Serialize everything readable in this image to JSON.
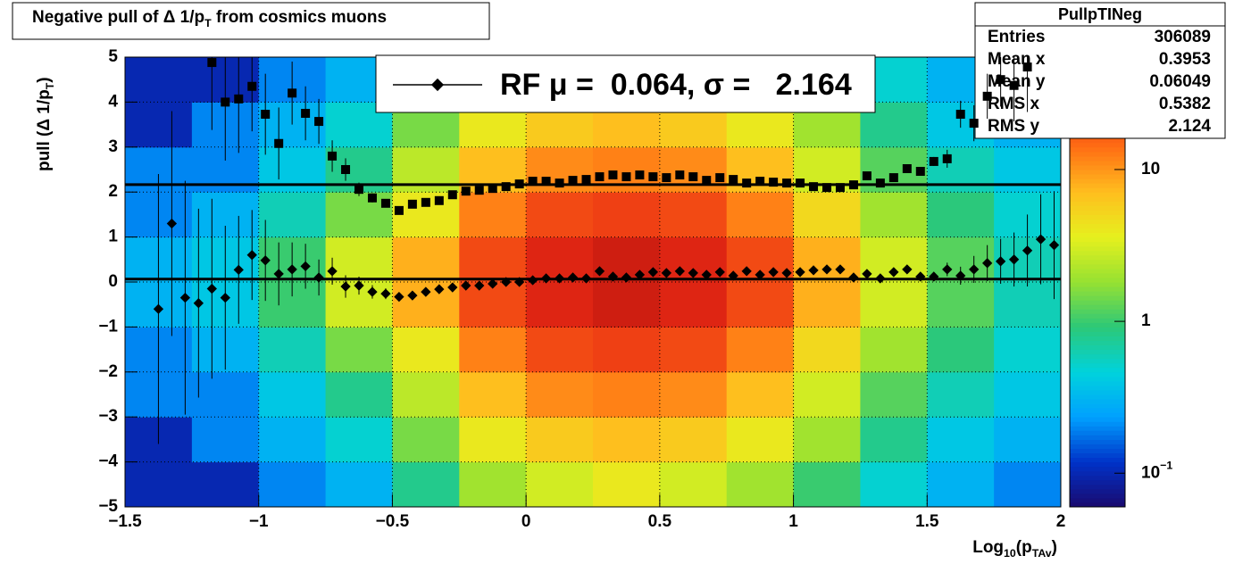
{
  "chart_data": {
    "type": "profile2d",
    "title": [
      "Negative pull of Δ 1/p",
      "T",
      " from cosmics muons"
    ],
    "xlabel": [
      "Log",
      "10",
      "(p",
      "TAv",
      ")"
    ],
    "ylabel": [
      "pull (Δ 1/p",
      "T",
      ")"
    ],
    "xlim": [
      -1.5,
      2
    ],
    "ylim": [
      -5,
      5
    ],
    "xticks": [
      {
        "value": -1.5,
        "label": "−1.5"
      },
      {
        "value": -1,
        "label": "−1"
      },
      {
        "value": -0.5,
        "label": "−0.5"
      },
      0,
      0.5,
      1,
      1.5,
      2
    ],
    "yticks": [
      {
        "value": -5,
        "label": "−5"
      },
      {
        "value": -4,
        "label": "−4"
      },
      {
        "value": -3,
        "label": "−3"
      },
      {
        "value": -2,
        "label": "−2"
      },
      {
        "value": -1,
        "label": "−1"
      },
      0,
      1,
      2,
      3,
      4,
      5
    ],
    "grid": true,
    "zlog": true,
    "zlim": [
      0.06,
      55
    ],
    "zticks": [
      {
        "value": 0.1,
        "label": [
          "10",
          "−1"
        ]
      },
      1,
      10
    ],
    "palette": [
      "#1a0a6e",
      "#0032c8",
      "#00a0ff",
      "#00d2dc",
      "#2cc878",
      "#96e132",
      "#e6f01e",
      "#ffbe1e",
      "#ff6e14",
      "#e62814",
      "#a00a0a"
    ],
    "z_xbins": [
      -1.5,
      -1.25,
      -1,
      -0.75,
      -0.5,
      -0.25,
      0,
      0.25,
      0.5,
      0.75,
      1,
      1.25,
      1.5,
      1.75,
      2
    ],
    "z_ybins": [
      -5,
      -4,
      -3,
      -2,
      -1,
      0,
      1,
      2,
      3,
      4,
      5
    ],
    "z": [
      [
        0.1,
        0.1,
        0.2,
        0.3,
        0.8,
        2,
        3,
        4,
        3,
        2,
        1,
        0.5,
        0.3,
        0.2
      ],
      [
        0.1,
        0.2,
        0.3,
        0.5,
        1.5,
        4,
        6,
        7,
        6,
        4,
        2,
        0.8,
        0.4,
        0.3
      ],
      [
        0.2,
        0.2,
        0.4,
        0.8,
        2.5,
        7,
        11,
        12,
        11,
        7,
        3,
        1.2,
        0.6,
        0.4
      ],
      [
        0.2,
        0.3,
        0.6,
        1.5,
        4,
        12,
        20,
        22,
        20,
        12,
        5,
        2,
        0.9,
        0.5
      ],
      [
        0.3,
        0.4,
        1,
        3,
        8,
        20,
        30,
        35,
        30,
        20,
        8,
        3,
        1.2,
        0.6
      ],
      [
        0.3,
        0.4,
        1,
        3,
        8,
        20,
        30,
        35,
        30,
        20,
        8,
        3,
        1.2,
        0.6
      ],
      [
        0.2,
        0.3,
        0.6,
        1.5,
        4,
        12,
        20,
        22,
        20,
        12,
        5,
        2,
        0.9,
        0.5
      ],
      [
        0.2,
        0.2,
        0.4,
        0.8,
        2.5,
        7,
        11,
        12,
        11,
        7,
        3,
        1.2,
        0.6,
        0.4
      ],
      [
        0.1,
        0.2,
        0.3,
        0.5,
        1.5,
        4,
        6,
        7,
        6,
        4,
        2,
        0.8,
        0.4,
        0.3
      ],
      [
        0.1,
        0.1,
        0.2,
        0.3,
        0.8,
        2,
        3,
        4,
        3,
        2,
        1,
        0.5,
        0.3,
        0.2
      ]
    ],
    "x": [
      -1.375,
      -1.325,
      -1.275,
      -1.225,
      -1.175,
      -1.125,
      -1.075,
      -1.025,
      -0.975,
      -0.925,
      -0.875,
      -0.825,
      -0.775,
      -0.725,
      -0.675,
      -0.625,
      -0.575,
      -0.525,
      -0.475,
      -0.425,
      -0.375,
      -0.325,
      -0.275,
      -0.225,
      -0.175,
      -0.125,
      -0.075,
      -0.025,
      0.025,
      0.075,
      0.125,
      0.175,
      0.225,
      0.275,
      0.325,
      0.375,
      0.425,
      0.475,
      0.525,
      0.575,
      0.625,
      0.675,
      0.725,
      0.775,
      0.825,
      0.875,
      0.925,
      0.975,
      1.025,
      1.075,
      1.125,
      1.175,
      1.225,
      1.275,
      1.325,
      1.375,
      1.425,
      1.475,
      1.525,
      1.575,
      1.625,
      1.675,
      1.725,
      1.775,
      1.825,
      1.875,
      1.925,
      1.975
    ],
    "series": [
      {
        "marker": "diamond",
        "color": "#000000",
        "values": [
          -0.6,
          1.3,
          -0.35,
          -0.47,
          -0.15,
          -0.35,
          0.27,
          0.6,
          0.48,
          0.18,
          0.28,
          0.35,
          0.1,
          0.24,
          -0.1,
          -0.08,
          -0.22,
          -0.26,
          -0.33,
          -0.3,
          -0.22,
          -0.16,
          -0.12,
          -0.08,
          -0.08,
          -0.04,
          0.0,
          0.0,
          0.04,
          0.08,
          0.08,
          0.1,
          0.08,
          0.24,
          0.12,
          0.1,
          0.16,
          0.22,
          0.2,
          0.24,
          0.2,
          0.16,
          0.22,
          0.14,
          0.24,
          0.16,
          0.22,
          0.2,
          0.22,
          0.26,
          0.28,
          0.28,
          0.1,
          0.18,
          0.08,
          0.22,
          0.28,
          0.12,
          0.12,
          0.28,
          0.14,
          0.28,
          0.42,
          0.46,
          0.5,
          0.7,
          0.95,
          0.82
        ],
        "errors": [
          3.0,
          2.5,
          2.6,
          2.1,
          2.0,
          1.6,
          1.2,
          1.0,
          0.9,
          0.7,
          0.6,
          0.5,
          0.4,
          0.3,
          0.25,
          0.2,
          0.15,
          0.12,
          0.1,
          0.08,
          0.04,
          0.04,
          0.04,
          0.04,
          0.04,
          0.04,
          0.04,
          0.04,
          0.04,
          0.04,
          0.04,
          0.04,
          0.04,
          0.04,
          0.04,
          0.04,
          0.04,
          0.04,
          0.04,
          0.04,
          0.04,
          0.04,
          0.04,
          0.04,
          0.04,
          0.04,
          0.04,
          0.04,
          0.04,
          0.04,
          0.04,
          0.04,
          0.04,
          0.04,
          0.04,
          0.04,
          0.04,
          0.08,
          0.1,
          0.15,
          0.2,
          0.3,
          0.4,
          0.5,
          0.6,
          0.8,
          1.0,
          1.2
        ]
      },
      {
        "marker": "square",
        "color": "#000000",
        "values": [
          null,
          null,
          null,
          null,
          4.88,
          4.0,
          4.07,
          4.35,
          3.73,
          3.08,
          4.2,
          3.75,
          3.57,
          2.8,
          2.5,
          2.06,
          1.87,
          1.75,
          1.59,
          1.73,
          1.77,
          1.81,
          1.94,
          2.02,
          2.04,
          2.08,
          2.12,
          2.18,
          2.24,
          2.24,
          2.2,
          2.26,
          2.28,
          2.34,
          2.38,
          2.34,
          2.38,
          2.34,
          2.32,
          2.38,
          2.34,
          2.26,
          2.32,
          2.28,
          2.2,
          2.24,
          2.22,
          2.2,
          2.2,
          2.12,
          2.1,
          2.1,
          2.16,
          2.36,
          2.2,
          2.32,
          2.52,
          2.46,
          2.68,
          2.74,
          3.73,
          3.53,
          4.13,
          4.5,
          4.37,
          4.78,
          null,
          null
        ],
        "errors": [
          null,
          null,
          null,
          null,
          1.5,
          1.3,
          1.2,
          1.0,
          0.9,
          0.8,
          0.7,
          0.6,
          0.5,
          0.35,
          0.25,
          0.15,
          0.1,
          0.08,
          0.06,
          0.05,
          0.03,
          0.03,
          0.03,
          0.03,
          0.03,
          0.03,
          0.03,
          0.03,
          0.03,
          0.03,
          0.03,
          0.03,
          0.03,
          0.03,
          0.03,
          0.03,
          0.03,
          0.03,
          0.03,
          0.03,
          0.03,
          0.03,
          0.03,
          0.03,
          0.03,
          0.03,
          0.03,
          0.03,
          0.03,
          0.03,
          0.03,
          0.03,
          0.03,
          0.03,
          0.03,
          0.03,
          0.03,
          0.08,
          0.1,
          0.2,
          0.3,
          0.4,
          0.5,
          0.6,
          0.8,
          1.0,
          null,
          null
        ]
      }
    ],
    "fit_lines": [
      0.064,
      2.164
    ],
    "legend_text": "RF μ =  0.064, σ =   2.164",
    "stats": {
      "title": "PullpTINeg",
      "rows": [
        [
          "Entries",
          306089
        ],
        [
          "Mean x",
          0.3953
        ],
        [
          "Mean y",
          0.06049
        ],
        [
          "RMS x",
          0.5382
        ],
        [
          "RMS y",
          2.124
        ]
      ]
    }
  }
}
